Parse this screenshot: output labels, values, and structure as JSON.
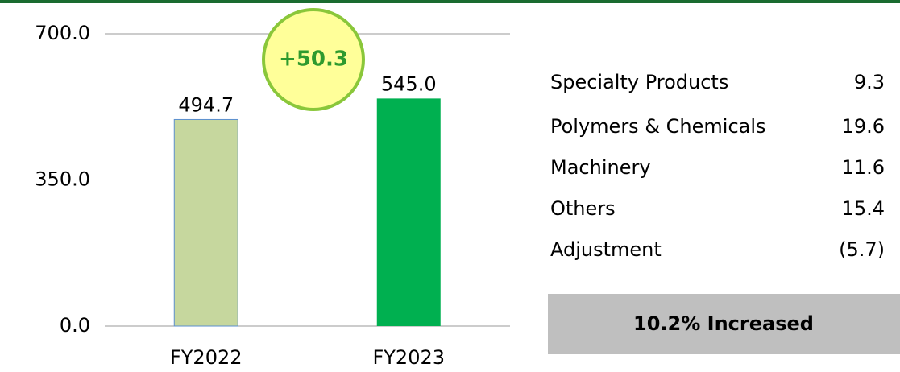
{
  "chart_data": {
    "type": "bar",
    "categories": [
      "FY2022",
      "FY2023"
    ],
    "values": [
      494.7,
      545.0
    ],
    "value_labels": [
      "494.7",
      "545.0"
    ],
    "colors": [
      "#c6d79e",
      "#00b050"
    ],
    "ylim": [
      0,
      700
    ],
    "yticks": [
      {
        "value": 0,
        "label": "0.0"
      },
      {
        "value": 350,
        "label": "350.0"
      },
      {
        "value": 700,
        "label": "700.0"
      }
    ],
    "grid": true,
    "annotation": "+50.3"
  },
  "breakdown": {
    "rows": [
      {
        "label": "Specialty Products",
        "value": "9.3"
      },
      {
        "label": "Polymers & Chemicals",
        "value": "19.6"
      },
      {
        "label": "Machinery",
        "value": "11.6"
      },
      {
        "label": "Others",
        "value": "15.4"
      },
      {
        "label": "Adjustment",
        "value": "(5.7)"
      }
    ],
    "summary": "10.2% Increased"
  }
}
